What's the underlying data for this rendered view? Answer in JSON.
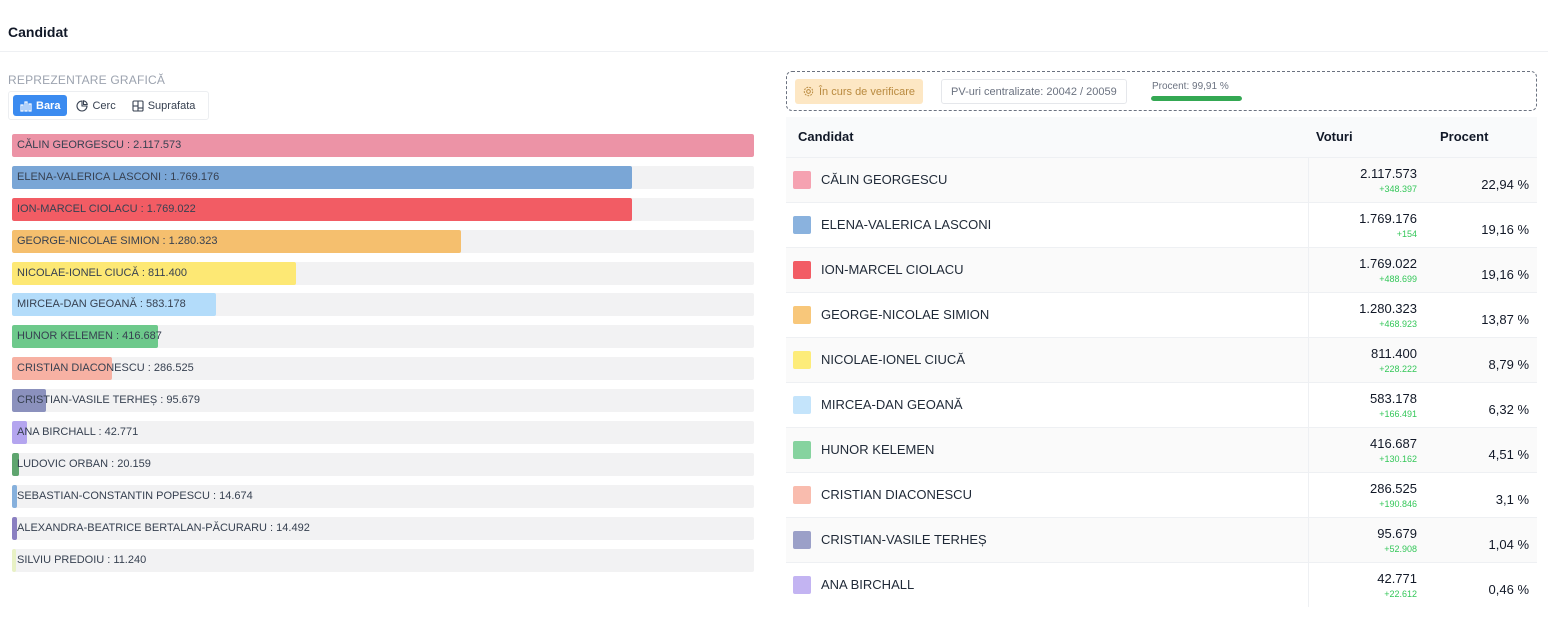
{
  "header": {
    "title": "Candidat"
  },
  "chart_panel": {
    "section_label": "REPREZENTARE GRAFICĂ",
    "view_options": [
      {
        "label": "Bara",
        "icon": "bar-chart-icon",
        "active": true
      },
      {
        "label": "Cerc",
        "icon": "pie-chart-icon",
        "active": false
      },
      {
        "label": "Suprafata",
        "icon": "treemap-icon",
        "active": false
      }
    ]
  },
  "chart_data": {
    "type": "bar",
    "orientation": "horizontal",
    "categories": [
      "CĂLIN GEORGESCU",
      "ELENA-VALERICA LASCONI",
      "ION-MARCEL CIOLACU",
      "GEORGE-NICOLAE SIMION",
      "NICOLAE-IONEL CIUCĂ",
      "MIRCEA-DAN GEOANĂ",
      "HUNOR KELEMEN",
      "CRISTIAN DIACONESCU",
      "CRISTIAN-VASILE TERHEȘ",
      "ANA BIRCHALL",
      "LUDOVIC ORBAN",
      "SEBASTIAN-CONSTANTIN POPESCU",
      "ALEXANDRA-BEATRICE BERTALAN-PĂCURARU",
      "SILVIU PREDOIU"
    ],
    "values": [
      2117573,
      1769176,
      1769022,
      1280323,
      811400,
      583178,
      416687,
      286525,
      95679,
      42771,
      20159,
      14674,
      14492,
      11240
    ],
    "value_labels": [
      "2.117.573",
      "1.769.176",
      "1.769.022",
      "1.280.323",
      "811.400",
      "583.178",
      "416.687",
      "286.525",
      "95.679",
      "42.771",
      "20.159",
      "14.674",
      "14.492",
      "11.240"
    ],
    "colors": [
      "#ec93a6",
      "#7aa6d6",
      "#f25c64",
      "#f5bf6e",
      "#fde874",
      "#b3dcfa",
      "#6dc98b",
      "#f7b1a3",
      "#8b91bd",
      "#b4a5ef",
      "#5fa56f",
      "#86b0dc",
      "#8a7fc1",
      "#e8f1c5"
    ],
    "title": "",
    "xlabel": "",
    "ylabel": ""
  },
  "status": {
    "verify_label": "În curs de verificare",
    "pv_label": "PV-uri centralizate: 20042 / 20059",
    "percent_label": "Procent: 99,91 %",
    "percent_value": 99.91
  },
  "table": {
    "headers": {
      "candidate": "Candidat",
      "votes": "Voturi",
      "percent": "Procent"
    },
    "rows": [
      {
        "name": "CĂLIN GEORGESCU",
        "votes": "2.117.573",
        "delta": "+348.397",
        "percent": "22,94",
        "color": "#f5a2b1"
      },
      {
        "name": "ELENA-VALERICA LASCONI",
        "votes": "1.769.176",
        "delta": "+154",
        "percent": "19,16",
        "color": "#8ab2de"
      },
      {
        "name": "ION-MARCEL CIOLACU",
        "votes": "1.769.022",
        "delta": "+488.699",
        "percent": "19,16",
        "color": "#f25c64"
      },
      {
        "name": "GEORGE-NICOLAE SIMION",
        "votes": "1.280.323",
        "delta": "+468.923",
        "percent": "13,87",
        "color": "#f8c77a"
      },
      {
        "name": "NICOLAE-IONEL CIUCĂ",
        "votes": "811.400",
        "delta": "+228.222",
        "percent": "8,79",
        "color": "#fdec7a"
      },
      {
        "name": "MIRCEA-DAN GEOANĂ",
        "votes": "583.178",
        "delta": "+166.491",
        "percent": "6,32",
        "color": "#c4e4fb"
      },
      {
        "name": "HUNOR KELEMEN",
        "votes": "416.687",
        "delta": "+130.162",
        "percent": "4,51",
        "color": "#86d39f"
      },
      {
        "name": "CRISTIAN DIACONESCU",
        "votes": "286.525",
        "delta": "+190.846",
        "percent": "3,1",
        "color": "#f9bcae"
      },
      {
        "name": "CRISTIAN-VASILE TERHEȘ",
        "votes": "95.679",
        "delta": "+52.908",
        "percent": "1,04",
        "color": "#9ba0c8"
      },
      {
        "name": "ANA BIRCHALL",
        "votes": "42.771",
        "delta": "+22.612",
        "percent": "0,46",
        "color": "#c3b4f2"
      }
    ],
    "percent_suffix": "%"
  }
}
